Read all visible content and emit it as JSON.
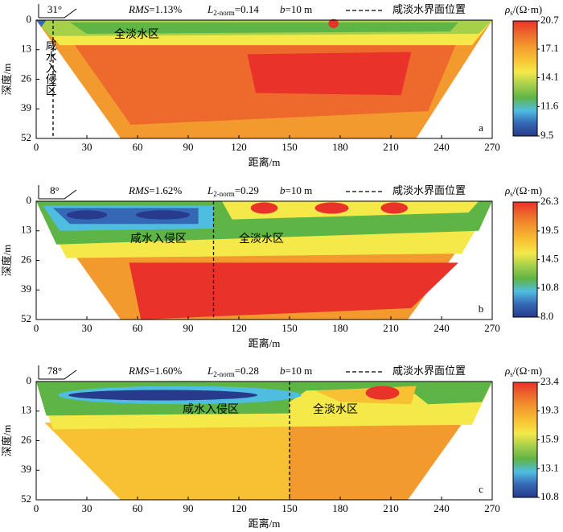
{
  "chart_data": [
    {
      "type": "contour",
      "panel": "a",
      "angle": "31°",
      "rms": [
        "RMS",
        "=1.13%"
      ],
      "l2": [
        "L",
        "2-norm",
        "=0.14"
      ],
      "b": [
        "b",
        "=10 m"
      ],
      "legend": "咸淡水界面位置",
      "interface_x": 10,
      "xlabel": "距离/m",
      "ylabel": "深度/m",
      "xlim": [
        0,
        270
      ],
      "xticks": [
        0,
        30,
        60,
        90,
        120,
        150,
        180,
        210,
        240,
        270
      ],
      "ylim": [
        0,
        52
      ],
      "yticks": [
        0,
        13,
        26,
        39,
        52
      ],
      "regions": [
        "全淡水区",
        "咸水入侵区"
      ],
      "colorbar": {
        "label": [
          "ρ",
          "s",
          "/(Ω·m)"
        ],
        "log": true,
        "clim": [
          9.5,
          20.7
        ],
        "ticks": [
          20.7,
          17.1,
          14.1,
          11.6,
          9.5
        ],
        "colors": [
          "#283a8c",
          "#3468b4",
          "#4fbde0",
          "#5fb446",
          "#a6cf4a",
          "#f5e94a",
          "#f8c134",
          "#f39a2e",
          "#ee6a2c",
          "#e8322a"
        ]
      }
    },
    {
      "type": "contour",
      "panel": "b",
      "angle": "8°",
      "rms": [
        "RMS",
        "=1.62%"
      ],
      "l2": [
        "L",
        "2-norm",
        "=0.29"
      ],
      "b": [
        "b",
        "=10 m"
      ],
      "legend": "咸淡水界面位置",
      "interface_x": 105,
      "xlabel": "距离/m",
      "ylabel": "深度/m",
      "xlim": [
        0,
        270
      ],
      "xticks": [
        0,
        30,
        60,
        90,
        120,
        150,
        180,
        210,
        240,
        270
      ],
      "ylim": [
        0,
        52
      ],
      "yticks": [
        0,
        13,
        26,
        39,
        52
      ],
      "regions": [
        "咸水入侵区",
        "全淡水区"
      ],
      "colorbar": {
        "label": [
          "ρ",
          "s",
          "/(Ω·m)"
        ],
        "log": true,
        "clim": [
          8.0,
          26.3
        ],
        "ticks": [
          26.3,
          19.5,
          14.5,
          10.8,
          {
            "value": 8,
            "label": "8.0"
          }
        ],
        "colors": [
          "#283a8c",
          "#3468b4",
          "#4fbde0",
          "#5fb446",
          "#a6cf4a",
          "#f5e94a",
          "#f8c134",
          "#f39a2e",
          "#ee6a2c",
          "#e8322a"
        ]
      }
    },
    {
      "type": "contour",
      "panel": "c",
      "angle": "78°",
      "rms": [
        "RMS",
        "=1.60%"
      ],
      "l2": [
        "L",
        "2-norm",
        "=0.28"
      ],
      "b": [
        "b",
        "=10 m"
      ],
      "legend": "咸淡水界面位置",
      "interface_x": 150,
      "xlabel": "距离/m",
      "ylabel": "深度/m",
      "xlim": [
        0,
        270
      ],
      "xticks": [
        0,
        30,
        60,
        90,
        120,
        150,
        180,
        210,
        240,
        270
      ],
      "ylim": [
        0,
        52
      ],
      "yticks": [
        0,
        13,
        26,
        39,
        52
      ],
      "regions": [
        "咸水入侵区",
        "全淡水区"
      ],
      "colorbar": {
        "label": [
          "ρ",
          "s",
          "/(Ω·m)"
        ],
        "log": true,
        "clim": [
          10.8,
          23.4
        ],
        "ticks": [
          23.4,
          19.3,
          15.9,
          13.1,
          10.8
        ],
        "colors": [
          "#283a8c",
          "#3468b4",
          "#4fbde0",
          "#5fb446",
          "#a6cf4a",
          "#f5e94a",
          "#f8c134",
          "#f39a2e",
          "#ee6a2c",
          "#e8322a"
        ]
      }
    }
  ]
}
